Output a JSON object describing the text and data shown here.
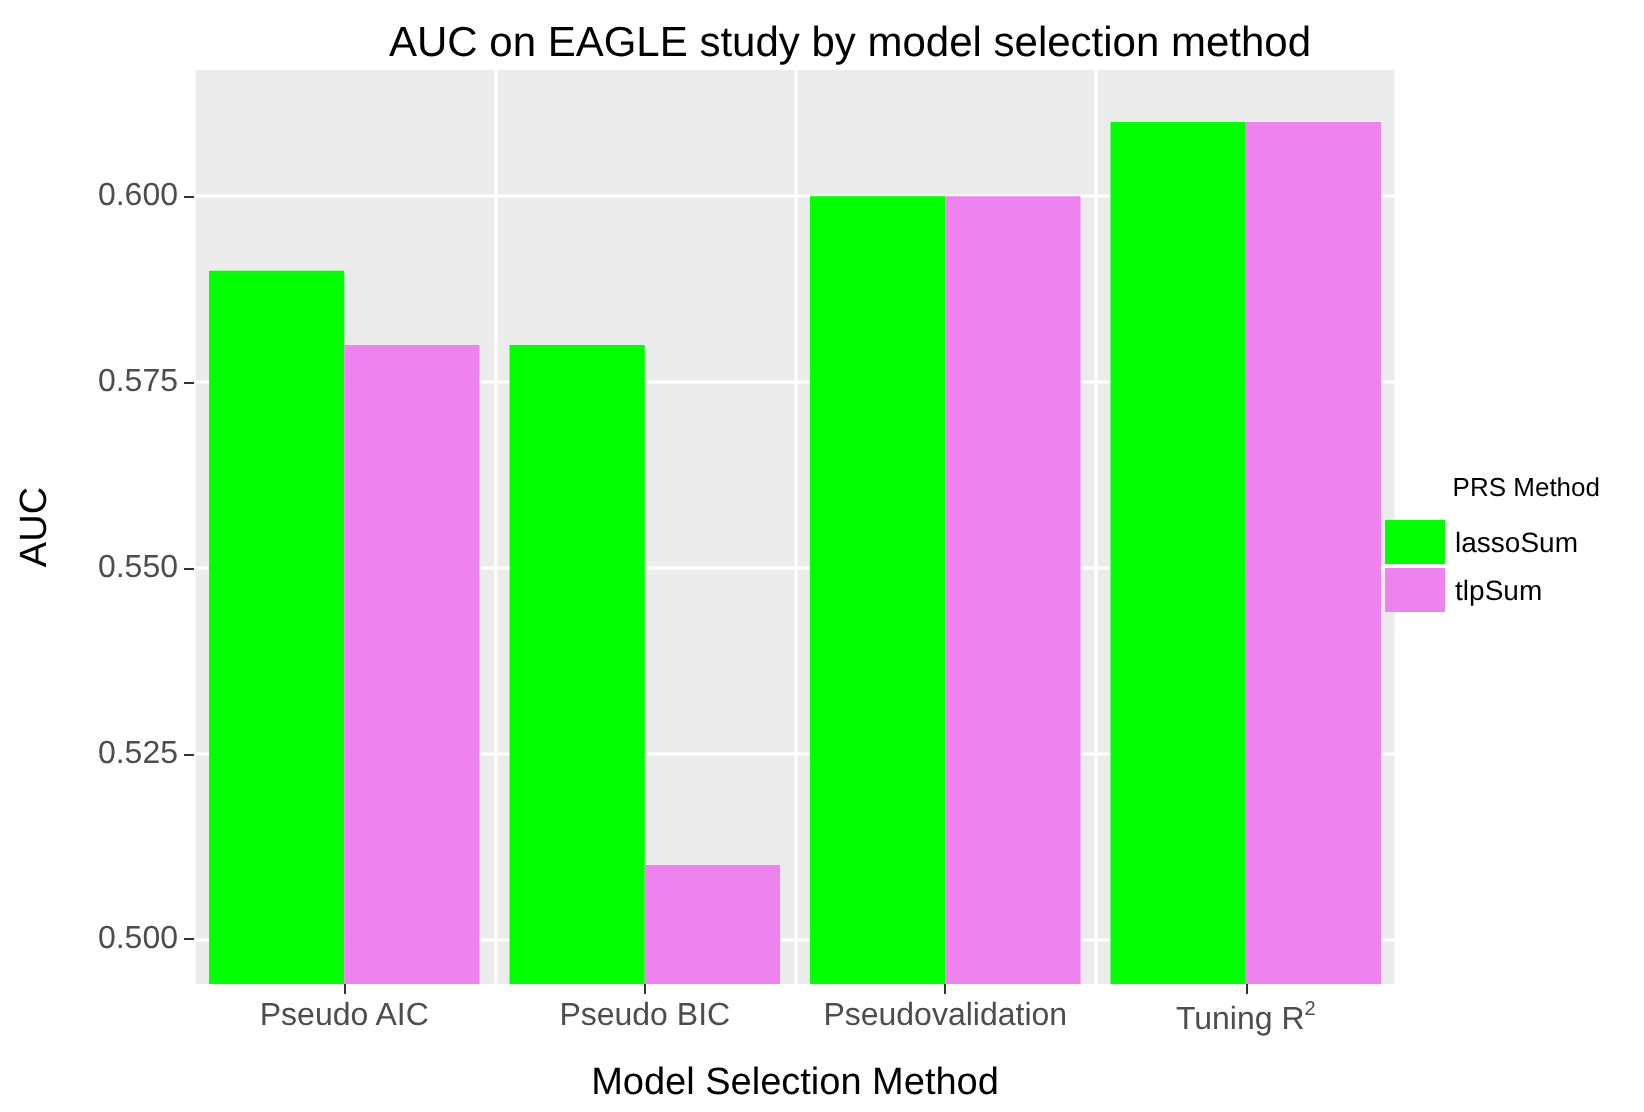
{
  "chart_data": {
    "type": "bar",
    "title": "AUC on EAGLE study by model selection method",
    "xlabel": "Model Selection Method",
    "ylabel": "AUC",
    "legend_title": "PRS Method",
    "categories": [
      "Pseudo AIC",
      "Pseudo BIC",
      "Pseudovalidation",
      "Tuning R$^{2}$"
    ],
    "series": [
      {
        "name": "lassoSum",
        "color": "#00ff00",
        "values": [
          0.59,
          0.58,
          0.6,
          0.61
        ]
      },
      {
        "name": "tlpSum",
        "color": "#ee82ee",
        "values": [
          0.58,
          0.51,
          0.6,
          0.61
        ]
      }
    ],
    "ylim": [
      0.494,
      0.617
    ],
    "yticks": [
      {
        "value": 0.5,
        "label": "0.500"
      },
      {
        "value": 0.525,
        "label": "0.525"
      },
      {
        "value": 0.55,
        "label": "0.550"
      },
      {
        "value": 0.575,
        "label": "0.575"
      },
      {
        "value": 0.6,
        "label": "0.600"
      }
    ],
    "grid": true,
    "legend": "right"
  }
}
